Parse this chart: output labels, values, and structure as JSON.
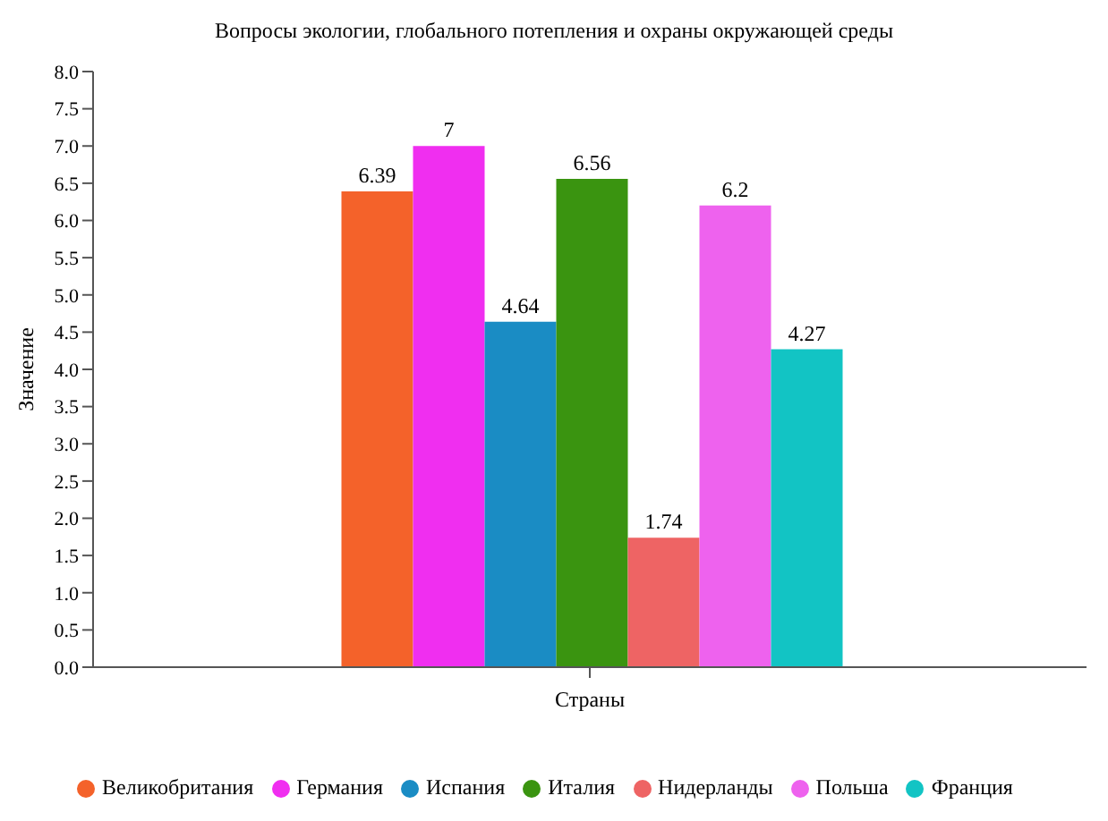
{
  "chart_data": {
    "type": "bar",
    "title": "Вопросы экологии, глобального потепления и охраны окружающей среды",
    "xlabel": "Страны",
    "ylabel": "Значение",
    "categories": [
      null
    ],
    "series": [
      {
        "name": "Великобритания",
        "color": "#f4622a",
        "values": [
          6.39
        ]
      },
      {
        "name": "Германия",
        "color": "#f02ef0",
        "values": [
          7
        ]
      },
      {
        "name": "Испания",
        "color": "#1a8cc4",
        "values": [
          4.64
        ]
      },
      {
        "name": "Италия",
        "color": "#3a9410",
        "values": [
          6.56
        ]
      },
      {
        "name": "Нидерланды",
        "color": "#ee6464",
        "values": [
          1.74
        ]
      },
      {
        "name": "Польша",
        "color": "#ee62ee",
        "values": [
          6.2
        ]
      },
      {
        "name": "Франция",
        "color": "#12c4c4",
        "values": [
          4.27
        ]
      }
    ],
    "ylim": [
      0,
      8
    ],
    "yticks": [
      {
        "value": 0,
        "label": "0.0"
      },
      {
        "value": 0.5,
        "label": "0.5"
      },
      {
        "value": 1,
        "label": "1.0"
      },
      {
        "value": 1.5,
        "label": "1.5"
      },
      {
        "value": 2,
        "label": "2.0"
      },
      {
        "value": 2.5,
        "label": "2.5"
      },
      {
        "value": 3,
        "label": "3.0"
      },
      {
        "value": 3.5,
        "label": "3.5"
      },
      {
        "value": 4,
        "label": "4.0"
      },
      {
        "value": 4.5,
        "label": "4.5"
      },
      {
        "value": 5,
        "label": "5.0"
      },
      {
        "value": 5.5,
        "label": "5.5"
      },
      {
        "value": 6,
        "label": "6.0"
      },
      {
        "value": 6.5,
        "label": "6.5"
      },
      {
        "value": 7,
        "label": "7.0"
      },
      {
        "value": 7.5,
        "label": "7.5"
      },
      {
        "value": 8,
        "label": "8.0"
      }
    ],
    "data_labels": true,
    "legend": "bottom",
    "grid": false
  }
}
